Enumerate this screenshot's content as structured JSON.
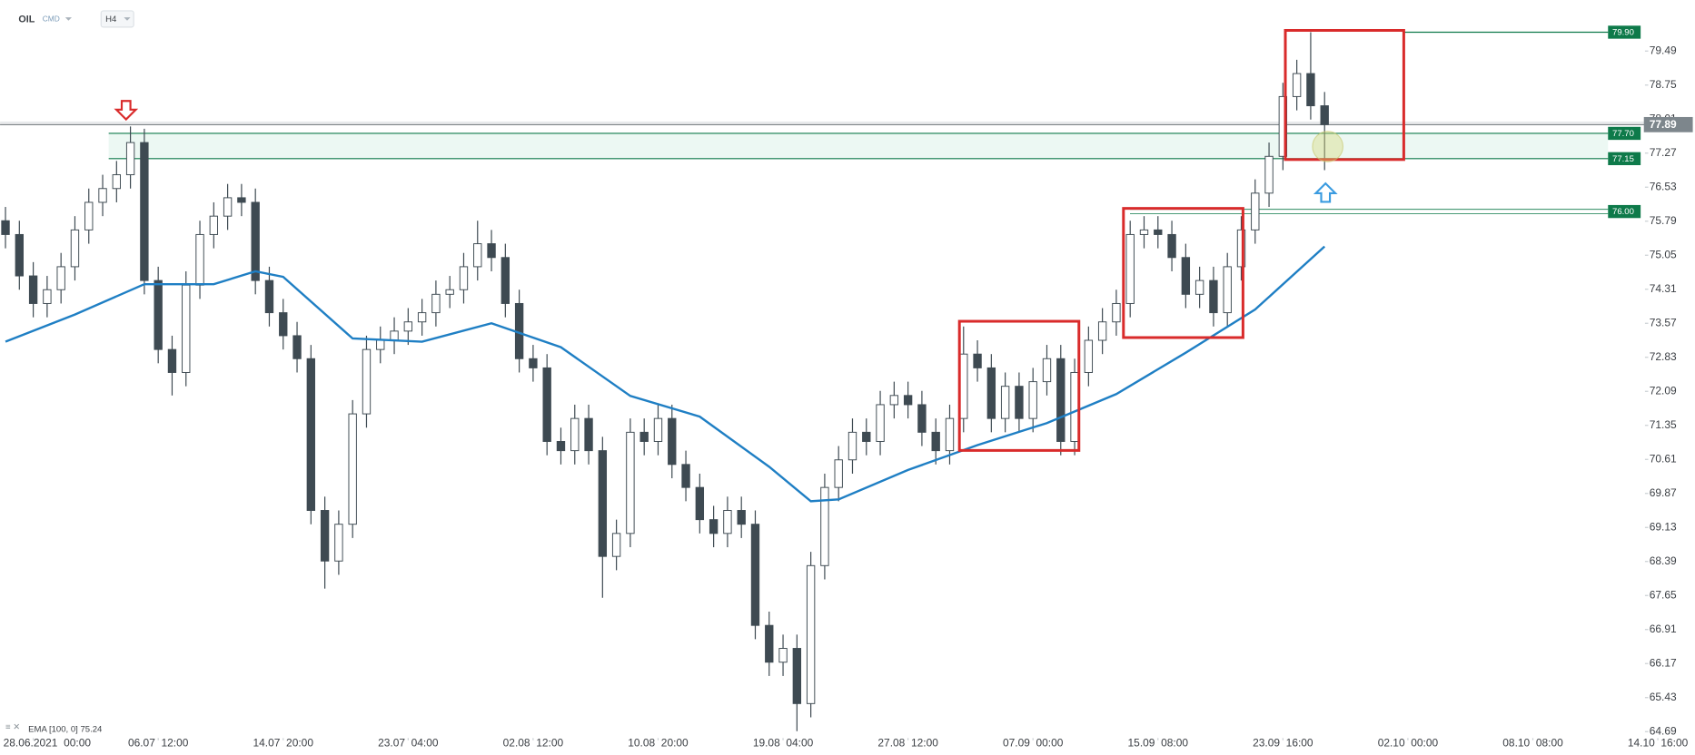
{
  "chart_data": {
    "type": "candlestick",
    "title": "OIL",
    "instrument_class": "CMD",
    "interval": "H4",
    "x": [
      0,
      1,
      2,
      3,
      4,
      5,
      6,
      7,
      8,
      9,
      10,
      11,
      12,
      13,
      14,
      15,
      16,
      17,
      18,
      19,
      20,
      21,
      22,
      23,
      24,
      25,
      26,
      27,
      28,
      29,
      30,
      31,
      32,
      33,
      34,
      35,
      36,
      37,
      38,
      39,
      40,
      41,
      42,
      43,
      44,
      45,
      46,
      47,
      48,
      49,
      50,
      51,
      52,
      53,
      54,
      55,
      56,
      57,
      58,
      59,
      60,
      61,
      62,
      63,
      64,
      65,
      66,
      67,
      68,
      69,
      70,
      71,
      72,
      73,
      74,
      75,
      76,
      77,
      78,
      79,
      80,
      81,
      82,
      83,
      84,
      85,
      86,
      87,
      88,
      89,
      90,
      91,
      92,
      93,
      94,
      95
    ],
    "open": [
      75.8,
      75.5,
      74.6,
      74.0,
      74.3,
      74.8,
      75.6,
      76.2,
      76.5,
      76.8,
      77.5,
      74.5,
      73.0,
      72.5,
      74.4,
      75.5,
      75.9,
      76.3,
      76.2,
      74.5,
      73.8,
      73.3,
      72.8,
      69.5,
      68.4,
      69.2,
      71.6,
      73.0,
      73.2,
      73.4,
      73.6,
      73.8,
      74.2,
      74.3,
      74.8,
      75.3,
      75.0,
      74.0,
      72.8,
      72.6,
      71.0,
      70.8,
      71.5,
      70.8,
      68.5,
      69.0,
      71.2,
      71.0,
      71.5,
      70.5,
      70.0,
      69.3,
      69.0,
      69.5,
      69.2,
      67.0,
      66.2,
      66.5,
      65.3,
      68.3,
      70.0,
      70.6,
      71.2,
      71.0,
      71.8,
      72.0,
      71.8,
      71.2,
      70.8,
      71.5,
      72.9,
      72.6,
      71.5,
      72.2,
      71.5,
      72.3,
      72.8,
      71.0,
      72.5,
      73.2,
      73.6,
      74.0,
      75.5,
      75.6,
      75.5,
      75.0,
      74.2,
      74.5,
      73.8,
      74.8,
      75.6,
      76.4,
      77.2,
      78.5,
      79.0,
      78.3
    ],
    "high": [
      76.1,
      75.8,
      74.9,
      74.6,
      75.1,
      75.9,
      76.5,
      76.8,
      77.1,
      77.85,
      77.8,
      74.8,
      73.3,
      74.7,
      75.8,
      76.2,
      76.6,
      76.6,
      76.5,
      74.8,
      74.1,
      73.6,
      73.1,
      69.8,
      69.5,
      71.9,
      73.3,
      73.5,
      73.7,
      73.9,
      74.1,
      74.5,
      74.6,
      75.1,
      75.8,
      75.6,
      75.3,
      74.3,
      73.1,
      72.9,
      71.3,
      71.8,
      71.8,
      71.1,
      69.3,
      71.5,
      71.5,
      71.8,
      71.8,
      70.8,
      70.3,
      69.6,
      69.8,
      69.8,
      69.5,
      67.3,
      66.8,
      66.8,
      68.6,
      70.3,
      70.9,
      71.5,
      71.5,
      72.1,
      72.3,
      72.3,
      72.1,
      71.5,
      71.8,
      73.5,
      73.2,
      72.9,
      72.5,
      72.5,
      72.6,
      73.1,
      73.1,
      72.8,
      73.5,
      73.9,
      74.3,
      75.8,
      75.9,
      75.9,
      75.8,
      75.3,
      74.8,
      74.8,
      75.1,
      75.9,
      76.7,
      77.5,
      78.8,
      79.3,
      79.9,
      78.6
    ],
    "low": [
      75.2,
      74.3,
      73.7,
      73.7,
      74.0,
      74.5,
      75.3,
      75.9,
      76.2,
      76.5,
      74.2,
      72.7,
      72.0,
      72.2,
      74.1,
      75.2,
      75.6,
      75.9,
      74.2,
      73.5,
      73.0,
      72.5,
      69.2,
      67.8,
      68.1,
      68.9,
      71.3,
      72.7,
      72.9,
      73.1,
      73.3,
      73.5,
      73.9,
      74.0,
      74.5,
      74.7,
      73.7,
      72.5,
      72.3,
      70.7,
      70.5,
      70.5,
      70.5,
      67.6,
      68.2,
      68.7,
      70.7,
      70.7,
      70.2,
      69.7,
      69.0,
      68.7,
      68.7,
      68.9,
      66.7,
      65.9,
      65.9,
      64.7,
      65.0,
      68.0,
      69.7,
      70.3,
      70.7,
      70.7,
      71.5,
      71.5,
      70.9,
      70.5,
      70.5,
      71.2,
      72.3,
      71.2,
      71.2,
      71.2,
      71.2,
      72.0,
      70.7,
      70.7,
      72.2,
      72.9,
      73.3,
      73.7,
      75.2,
      75.2,
      74.7,
      73.9,
      73.9,
      73.5,
      73.5,
      74.5,
      75.3,
      76.1,
      76.9,
      78.2,
      78.0,
      76.9
    ],
    "close": [
      75.5,
      74.6,
      74.0,
      74.3,
      74.8,
      75.6,
      76.2,
      76.5,
      76.8,
      77.5,
      74.5,
      73.0,
      72.5,
      74.4,
      75.5,
      75.9,
      76.3,
      76.2,
      74.5,
      73.8,
      73.3,
      72.8,
      69.5,
      68.4,
      69.2,
      71.6,
      73.0,
      73.2,
      73.4,
      73.6,
      73.8,
      74.2,
      74.3,
      74.8,
      75.3,
      75.0,
      74.0,
      72.8,
      72.6,
      71.0,
      70.8,
      71.5,
      70.8,
      68.5,
      69.0,
      71.2,
      71.0,
      71.5,
      70.5,
      70.0,
      69.3,
      69.0,
      69.5,
      69.2,
      67.0,
      66.2,
      66.5,
      65.3,
      68.3,
      70.0,
      70.6,
      71.2,
      71.0,
      71.8,
      72.0,
      71.8,
      71.2,
      70.8,
      71.5,
      72.9,
      72.6,
      71.5,
      72.2,
      71.5,
      72.3,
      72.8,
      71.0,
      72.5,
      73.2,
      73.6,
      74.0,
      75.5,
      75.6,
      75.5,
      75.0,
      74.2,
      74.5,
      73.8,
      74.8,
      75.6,
      76.4,
      77.2,
      78.5,
      79.0,
      78.3,
      77.89
    ],
    "up_color": "#ffffff",
    "down_color": "#3e4a52",
    "wick_color": "#3e4a52",
    "ema": {
      "label": "EMA [100, 0] 75.24",
      "color": "#1f7fc4",
      "x": [
        0,
        5,
        10,
        15,
        18,
        20,
        25,
        30,
        35,
        40,
        45,
        50,
        55,
        58,
        60,
        65,
        70,
        75,
        80,
        85,
        90,
        95
      ],
      "values": [
        73.17,
        73.76,
        74.42,
        74.42,
        74.7,
        74.58,
        73.24,
        73.17,
        73.57,
        73.05,
        71.99,
        71.54,
        70.45,
        69.7,
        69.74,
        70.38,
        70.92,
        71.4,
        72.03,
        72.93,
        73.87,
        75.24
      ]
    },
    "levels": [
      {
        "value": 79.9,
        "label": "79.90"
      },
      {
        "value": 77.7,
        "label": "77.70"
      },
      {
        "value": 77.15,
        "label": "77.15"
      },
      {
        "value": 76.0,
        "label": "76.00"
      }
    ],
    "level_color": "#0e7a4a",
    "last_price": 77.89,
    "xlim": [
      0,
      120.5
    ],
    "ylim": [
      64.55,
      80.6
    ],
    "yticks": [
      79.49,
      78.75,
      78.01,
      77.27,
      76.53,
      75.79,
      75.05,
      74.31,
      73.57,
      72.83,
      72.09,
      71.35,
      70.61,
      69.87,
      69.13,
      68.39,
      67.65,
      66.91,
      66.17,
      65.43,
      64.69
    ],
    "xticks": [
      {
        "value": 2,
        "label": "28.06.2021  00:00"
      },
      {
        "value": 11,
        "label": "06.07  12:00"
      },
      {
        "value": 20,
        "label": "14.07  20:00"
      },
      {
        "value": 29,
        "label": "23.07  04:00"
      },
      {
        "value": 38,
        "label": "02.08  12:00"
      },
      {
        "value": 47,
        "label": "10.08  20:00"
      },
      {
        "value": 56,
        "label": "19.08  04:00"
      },
      {
        "value": 65,
        "label": "27.08  12:00"
      },
      {
        "value": 74,
        "label": "07.09  00:00"
      },
      {
        "value": 83,
        "label": "15.09  08:00"
      },
      {
        "value": 92,
        "label": "23.09  16:00"
      },
      {
        "value": 101,
        "label": "02.10  00:00"
      },
      {
        "value": 110,
        "label": "08.10  08:00"
      },
      {
        "value": 119,
        "label": "14.10  16:00"
      }
    ]
  }
}
